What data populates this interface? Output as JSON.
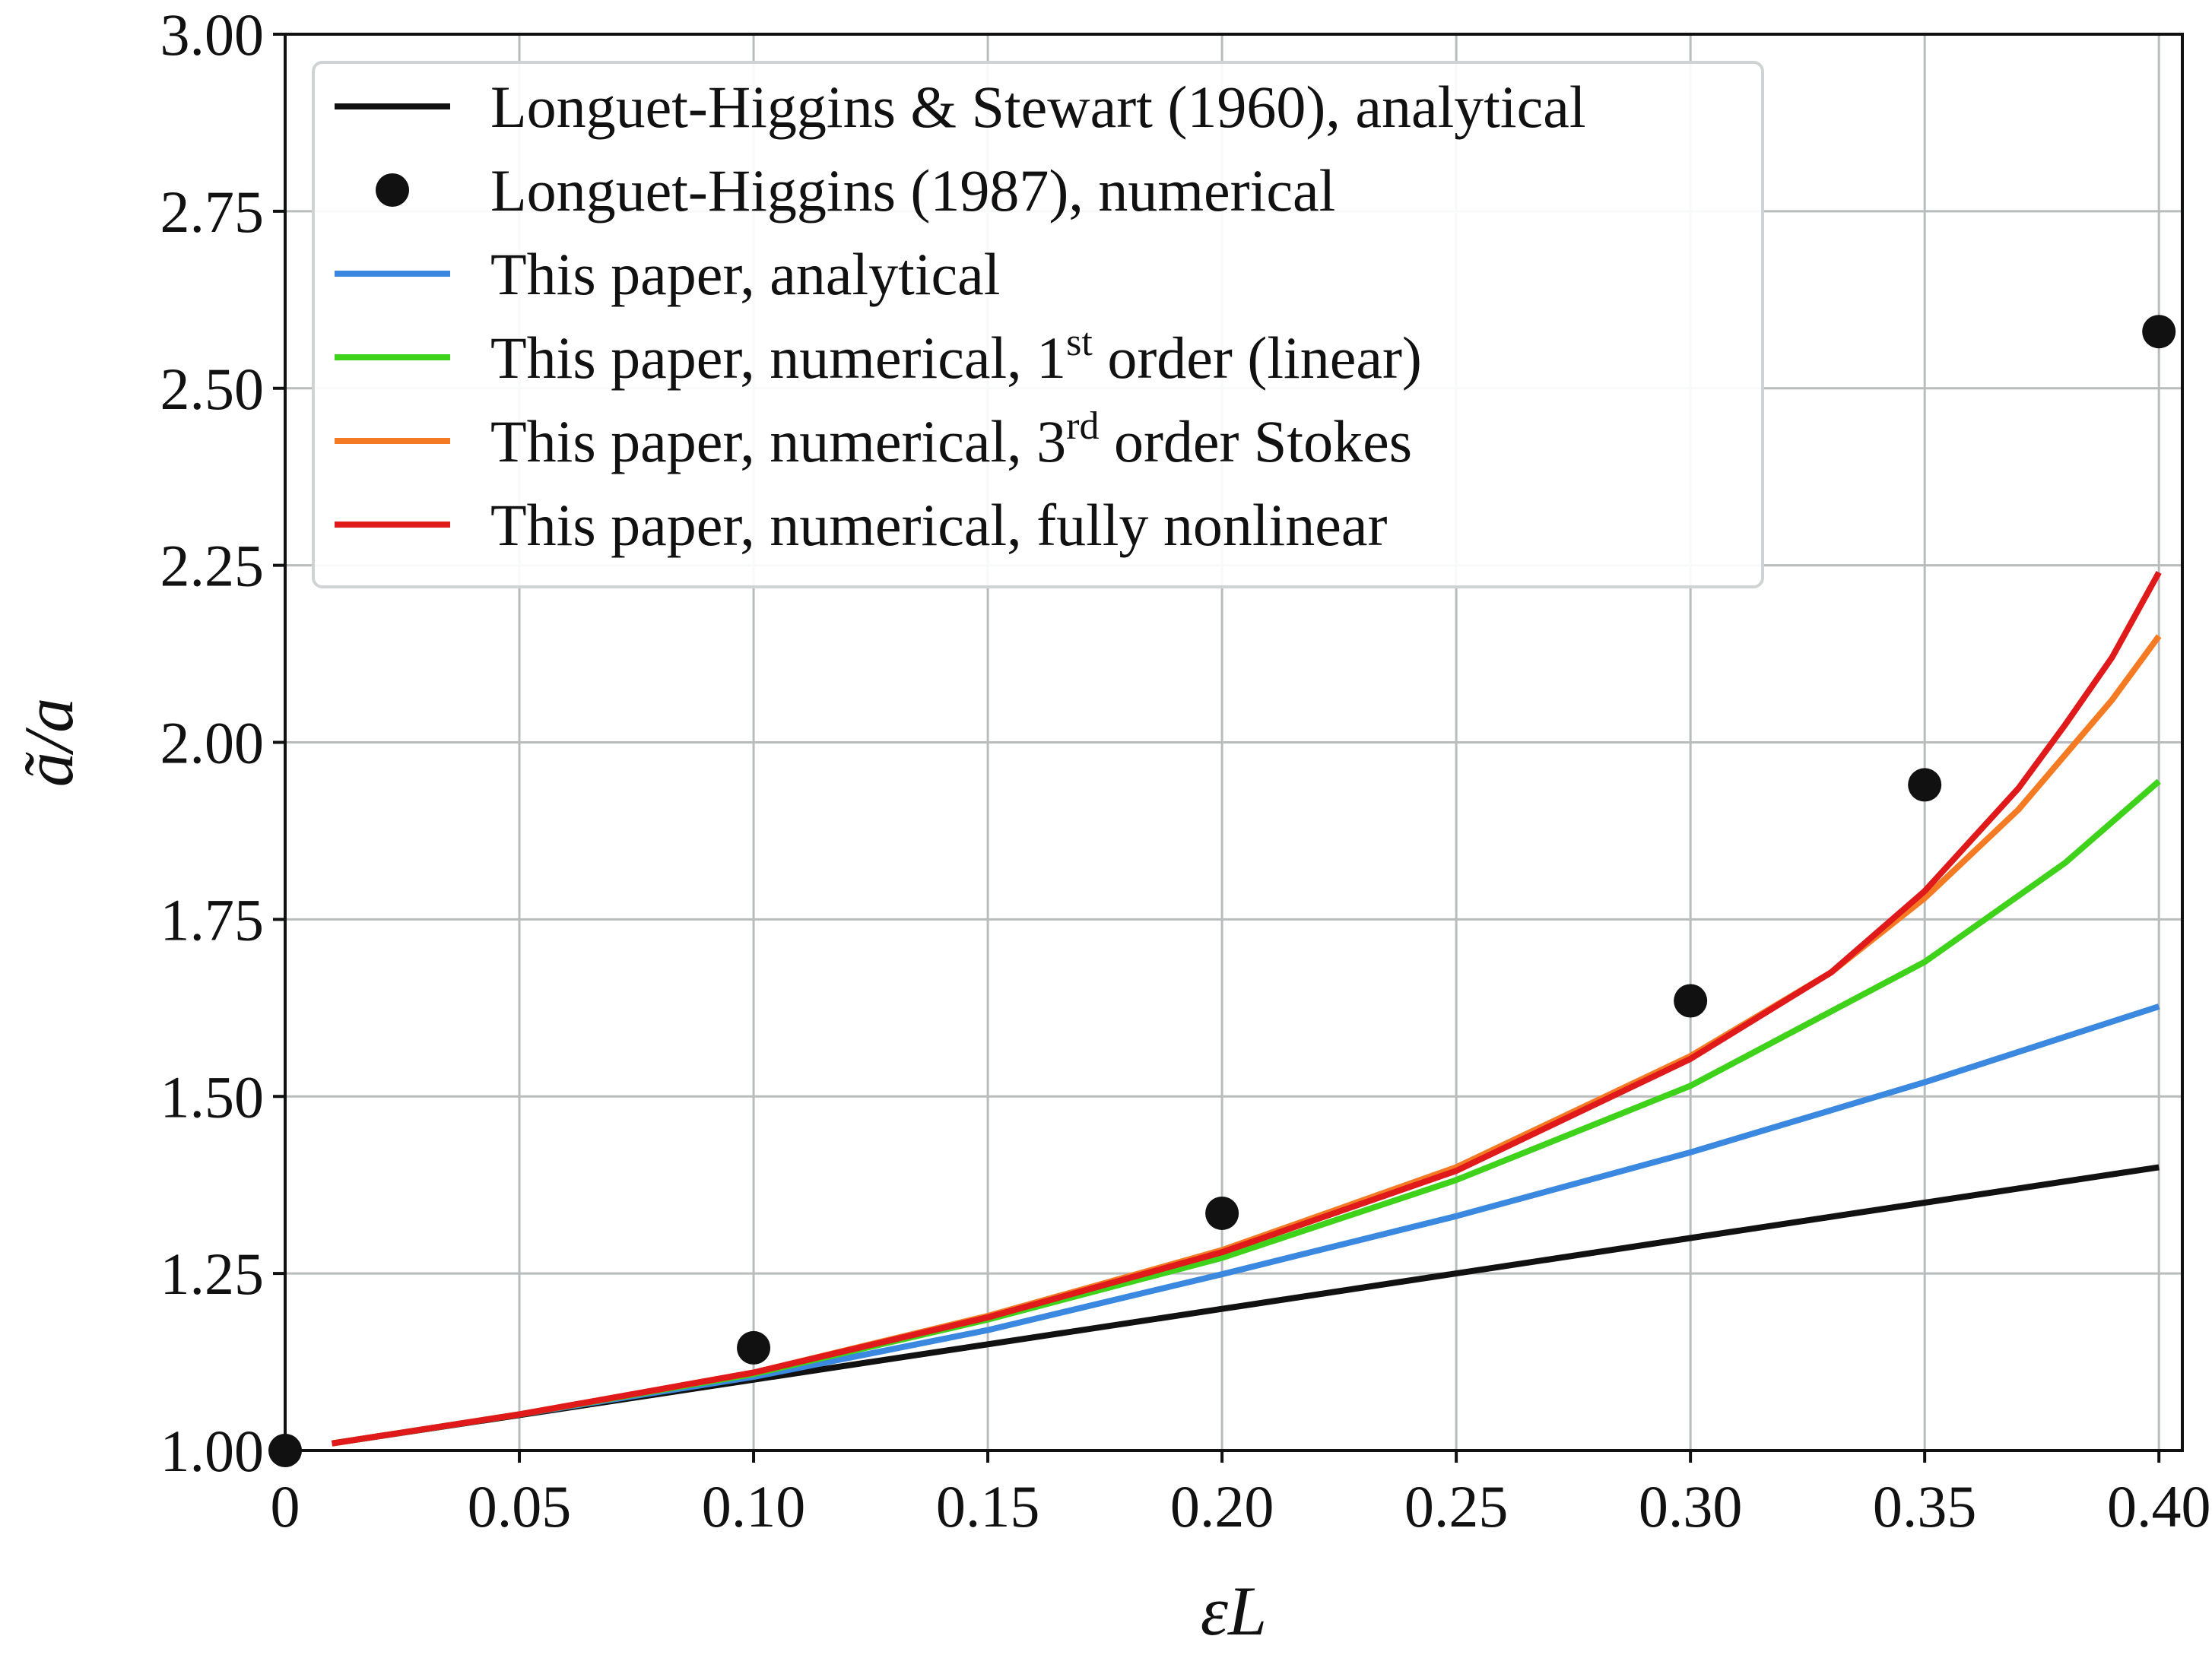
{
  "chart_data": {
    "type": "line",
    "title": "",
    "xlabel": "εL",
    "ylabel": "ã/a",
    "xlim": [
      0,
      0.405
    ],
    "ylim": [
      1.0,
      3.0
    ],
    "x_ticks": [
      {
        "value": 0,
        "label": "0"
      },
      {
        "value": 0.05,
        "label": "0.05"
      },
      {
        "value": 0.1,
        "label": "0.10"
      },
      {
        "value": 0.15,
        "label": "0.15"
      },
      {
        "value": 0.2,
        "label": "0.20"
      },
      {
        "value": 0.25,
        "label": "0.25"
      },
      {
        "value": 0.3,
        "label": "0.30"
      },
      {
        "value": 0.35,
        "label": "0.35"
      },
      {
        "value": 0.4,
        "label": "0.40"
      }
    ],
    "y_ticks": [
      {
        "value": 1.0,
        "label": "1.00"
      },
      {
        "value": 1.25,
        "label": "1.25"
      },
      {
        "value": 1.5,
        "label": "1.50"
      },
      {
        "value": 1.75,
        "label": "1.75"
      },
      {
        "value": 2.0,
        "label": "2.00"
      },
      {
        "value": 2.25,
        "label": "2.25"
      },
      {
        "value": 2.5,
        "label": "2.50"
      },
      {
        "value": 2.75,
        "label": "2.75"
      },
      {
        "value": 3.0,
        "label": "3.00"
      }
    ],
    "grid": true,
    "legend_position": "top-left",
    "series": [
      {
        "name": "Longuet-Higgins & Stewart (1960), analytical",
        "legend_text": "Longuet-Higgins & Stewart (1960), analytical",
        "kind": "line",
        "color": "#111111",
        "x": [
          0.01,
          0.05,
          0.1,
          0.15,
          0.2,
          0.25,
          0.3,
          0.35,
          0.4
        ],
        "y": [
          1.01,
          1.05,
          1.1,
          1.15,
          1.2,
          1.25,
          1.3,
          1.35,
          1.4
        ]
      },
      {
        "name": "Longuet-Higgins (1987), numerical",
        "legend_text": "Longuet-Higgins (1987), numerical",
        "kind": "scatter",
        "color": "#111111",
        "x": [
          0.0,
          0.1,
          0.2,
          0.3,
          0.35,
          0.4
        ],
        "y": [
          1.0,
          1.145,
          1.335,
          1.635,
          1.94,
          2.58
        ]
      },
      {
        "name": "This paper, analytical",
        "legend_text": "This paper, analytical",
        "kind": "line",
        "color": "#3a88e0",
        "x": [
          0.01,
          0.05,
          0.1,
          0.15,
          0.2,
          0.25,
          0.3,
          0.35,
          0.4
        ],
        "y": [
          1.01,
          1.051,
          1.104,
          1.17,
          1.249,
          1.331,
          1.421,
          1.52,
          1.627
        ]
      },
      {
        "name": "This paper, numerical, 1st order (linear)",
        "legend_text": "This paper, numerical, 1",
        "legend_sup": "st",
        "legend_tail": " order (linear)",
        "kind": "line",
        "color": "#3fd21a",
        "x": [
          0.01,
          0.05,
          0.1,
          0.15,
          0.2,
          0.25,
          0.3,
          0.35,
          0.38,
          0.4
        ],
        "y": [
          1.01,
          1.051,
          1.108,
          1.185,
          1.272,
          1.382,
          1.515,
          1.69,
          1.83,
          1.945
        ]
      },
      {
        "name": "This paper, numerical, 3rd order Stokes",
        "legend_text": "This paper, numerical, 3",
        "legend_sup": "rd",
        "legend_tail": " order Stokes",
        "kind": "line",
        "color": "#f57a24",
        "x": [
          0.01,
          0.05,
          0.1,
          0.15,
          0.2,
          0.25,
          0.3,
          0.33,
          0.35,
          0.37,
          0.39,
          0.4
        ],
        "y": [
          1.01,
          1.051,
          1.11,
          1.19,
          1.283,
          1.4,
          1.557,
          1.675,
          1.78,
          1.905,
          2.06,
          2.15
        ]
      },
      {
        "name": "This paper, numerical, fully nonlinear",
        "legend_text": "This paper, numerical, fully nonlinear",
        "kind": "line",
        "color": "#e0191b",
        "x": [
          0.01,
          0.05,
          0.1,
          0.15,
          0.2,
          0.25,
          0.3,
          0.33,
          0.35,
          0.37,
          0.38,
          0.39,
          0.4
        ],
        "y": [
          1.01,
          1.051,
          1.11,
          1.188,
          1.28,
          1.395,
          1.553,
          1.675,
          1.79,
          1.935,
          2.025,
          2.12,
          2.24
        ]
      }
    ]
  }
}
